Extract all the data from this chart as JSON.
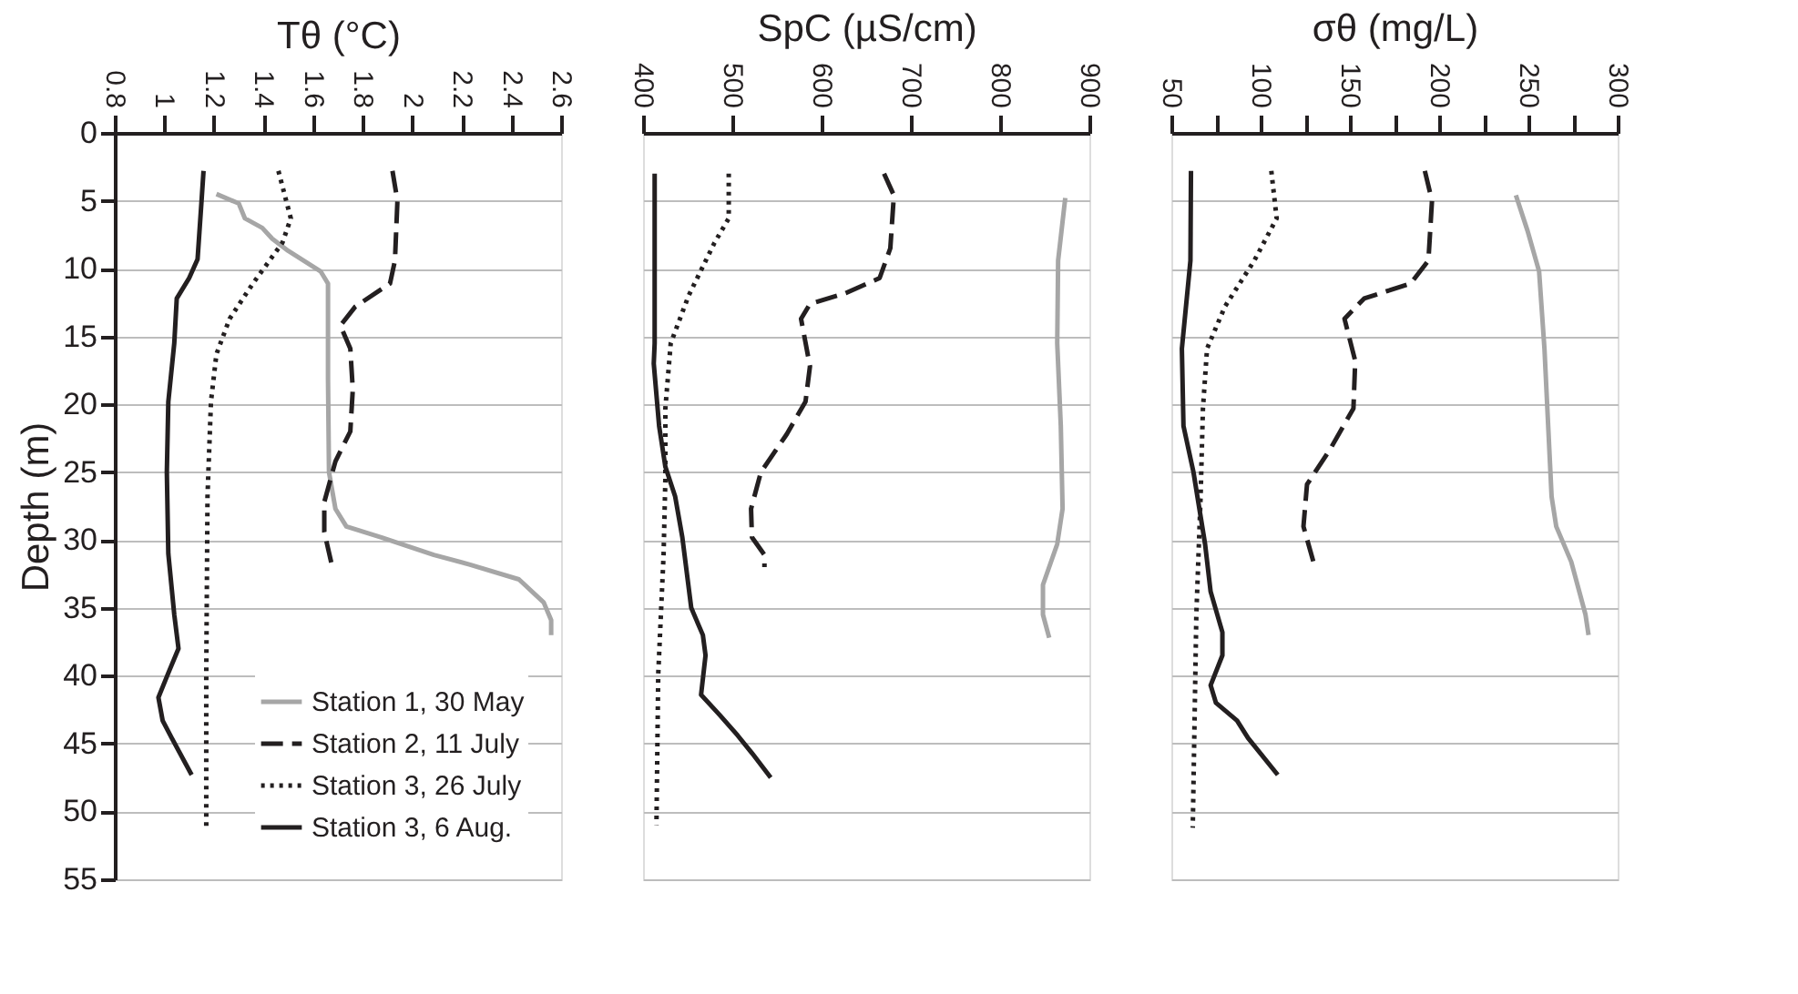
{
  "chart_data": [
    {
      "type": "line",
      "xlabel": "Tθ (°C)",
      "ylabel": "Depth (m)",
      "xlim": [
        0.8,
        2.6
      ],
      "xticks": [
        0.8,
        1,
        1.2,
        1.4,
        1.6,
        1.8,
        2,
        2.2,
        2.4,
        2.6
      ],
      "ylim": [
        55,
        0
      ],
      "yticks": [
        0,
        5,
        10,
        15,
        20,
        25,
        30,
        35,
        40,
        45,
        50,
        55
      ],
      "grid": "y",
      "legend": "bottom right",
      "series": [
        {
          "name": "Station 1, 30 May",
          "color": "#a6a6a6",
          "line_style": "solid",
          "x": [
            1.21,
            1.3,
            1.325,
            1.395,
            1.435,
            1.5,
            1.63,
            1.66,
            1.66,
            1.664,
            1.69,
            1.734,
            1.875,
            2.087,
            2.23,
            2.43,
            2.53,
            2.56,
            2.56
          ],
          "values": [
            4.5,
            5.2,
            6.3,
            7,
            7.8,
            8.7,
            10.2,
            11.1,
            18.1,
            25,
            27.7,
            29,
            29.8,
            31.1,
            31.8,
            32.9,
            34.6,
            35.9,
            37
          ]
        },
        {
          "name": "Station 2, 11 July",
          "color": "#231f20",
          "line_style": "dashed",
          "x": [
            1.92,
            1.94,
            1.93,
            1.91,
            1.77,
            1.71,
            1.75,
            1.76,
            1.75,
            1.69,
            1.645,
            1.645,
            1.675
          ],
          "values": [
            2.8,
            5,
            9.4,
            11.1,
            12.8,
            14.2,
            15.9,
            18.9,
            22,
            24.2,
            27.2,
            29.4,
            31.8
          ]
        },
        {
          "name": "Station 3, 26 July",
          "color": "#231f20",
          "line_style": "dotted",
          "x": [
            1.46,
            1.51,
            1.476,
            1.357,
            1.263,
            1.21,
            1.188,
            1.174,
            1.169,
            1.169
          ],
          "values": [
            2.8,
            6.3,
            8.1,
            11.1,
            13.7,
            16.3,
            19.8,
            26.8,
            39.9,
            51.2
          ]
        },
        {
          "name": "Station 3, 6 Aug.",
          "color": "#231f20",
          "line_style": "solid",
          "x": [
            1.158,
            1.15,
            1.134,
            1.1,
            1.05,
            1.04,
            1.016,
            1.01,
            1.016,
            1.04,
            1.057,
            1.016,
            0.976,
            0.993,
            1.03,
            1.11
          ],
          "values": [
            2.8,
            5,
            9.3,
            10.7,
            12.2,
            15.5,
            19.8,
            25,
            31,
            35.5,
            38,
            39.8,
            41.6,
            43.3,
            44.6,
            47.3
          ]
        }
      ]
    },
    {
      "type": "line",
      "xlabel": "SpC (µS/cm)",
      "xlim": [
        400,
        900
      ],
      "xticks": [
        400,
        500,
        600,
        700,
        800,
        900
      ],
      "ylim": [
        55,
        0
      ],
      "yticks": [
        0,
        5,
        10,
        15,
        20,
        25,
        30,
        35,
        40,
        45,
        50,
        55
      ],
      "grid": "y",
      "tick_labels": "x",
      "series": [
        {
          "color": "#a6a6a6",
          "line_style": "solid",
          "x": [
            873,
            865,
            864,
            868,
            870,
            864,
            848,
            848,
            855
          ],
          "values": [
            4.8,
            9.4,
            15.5,
            21.6,
            27.7,
            30.3,
            33.3,
            35.5,
            37.2
          ]
        },
        {
          "color": "#231f20",
          "line_style": "dashed",
          "x": [
            670,
            681,
            677,
            665,
            627,
            587,
            577,
            587,
            582,
            561,
            532,
            521,
            522,
            536,
            536
          ],
          "values": [
            3,
            4.6,
            8.5,
            10.7,
            11.8,
            12.6,
            13.7,
            17.2,
            19.8,
            22.2,
            25,
            27.7,
            29.8,
            31.1,
            32
          ]
        },
        {
          "color": "#231f20",
          "line_style": "dotted",
          "x": [
            496,
            496,
            480,
            451,
            431,
            425,
            425,
            423,
            417,
            415
          ],
          "values": [
            3,
            6.3,
            8.1,
            12,
            15.5,
            20.3,
            25.5,
            31.1,
            39.9,
            51
          ]
        },
        {
          "color": "#231f20",
          "line_style": "solid",
          "x": [
            413,
            413,
            413,
            412,
            418,
            425,
            436,
            444,
            454,
            467,
            470,
            465,
            486,
            506,
            522,
            543
          ],
          "values": [
            3,
            9.4,
            15.5,
            17,
            21.6,
            24.6,
            26.8,
            29.8,
            35,
            37,
            38.5,
            41.4,
            42.9,
            44.4,
            45.7,
            47.5
          ]
        }
      ]
    },
    {
      "type": "line",
      "xlabel": "σθ (mg/L)",
      "xlim": [
        50,
        300
      ],
      "xticks": [
        50,
        {
          "value": 75,
          "label": null
        },
        100,
        {
          "value": 125,
          "label": null
        },
        150,
        {
          "value": 175,
          "label": null
        },
        200,
        {
          "value": 225,
          "label": null
        },
        250,
        {
          "value": 275,
          "label": null
        },
        300
      ],
      "ylim": [
        55,
        0
      ],
      "yticks": [
        0,
        5,
        10,
        15,
        20,
        25,
        30,
        35,
        40,
        45,
        50,
        55
      ],
      "grid": "y",
      "tick_labels": "x",
      "series": [
        {
          "color": "#a6a6a6",
          "line_style": "solid",
          "x": [
            243,
            249.5,
            256,
            259,
            263,
            265.6,
            274,
            282,
            283.7
          ],
          "values": [
            4.6,
            7.2,
            10.2,
            15.9,
            26.8,
            29,
            31.6,
            35.5,
            37
          ]
        },
        {
          "color": "#231f20",
          "line_style": "dashed",
          "x": [
            192,
            196,
            194,
            184,
            158,
            147,
            153,
            152,
            139,
            126,
            124,
            130
          ],
          "values": [
            2.8,
            5,
            9.4,
            11.1,
            12.2,
            13.7,
            16.8,
            20.3,
            23.3,
            25.9,
            29,
            31.8
          ]
        },
        {
          "color": "#231f20",
          "line_style": "dotted",
          "x": [
            106,
            109,
            96.5,
            80,
            70,
            67.7,
            66.4,
            64,
            62
          ],
          "values": [
            2.8,
            6.3,
            9.4,
            12.8,
            15.9,
            20.3,
            26.8,
            35.5,
            51.2
          ]
        },
        {
          "color": "#231f20",
          "line_style": "solid",
          "x": [
            61,
            60.7,
            55.9,
            56.8,
            62.4,
            68.9,
            72,
            78.6,
            78.6,
            72,
            75,
            86.8,
            93,
            109.6
          ],
          "values": [
            2.8,
            9.4,
            15.9,
            21.6,
            25,
            30.3,
            33.8,
            36.8,
            38.5,
            40.7,
            42,
            43.3,
            44.6,
            47.3
          ]
        }
      ]
    }
  ]
}
